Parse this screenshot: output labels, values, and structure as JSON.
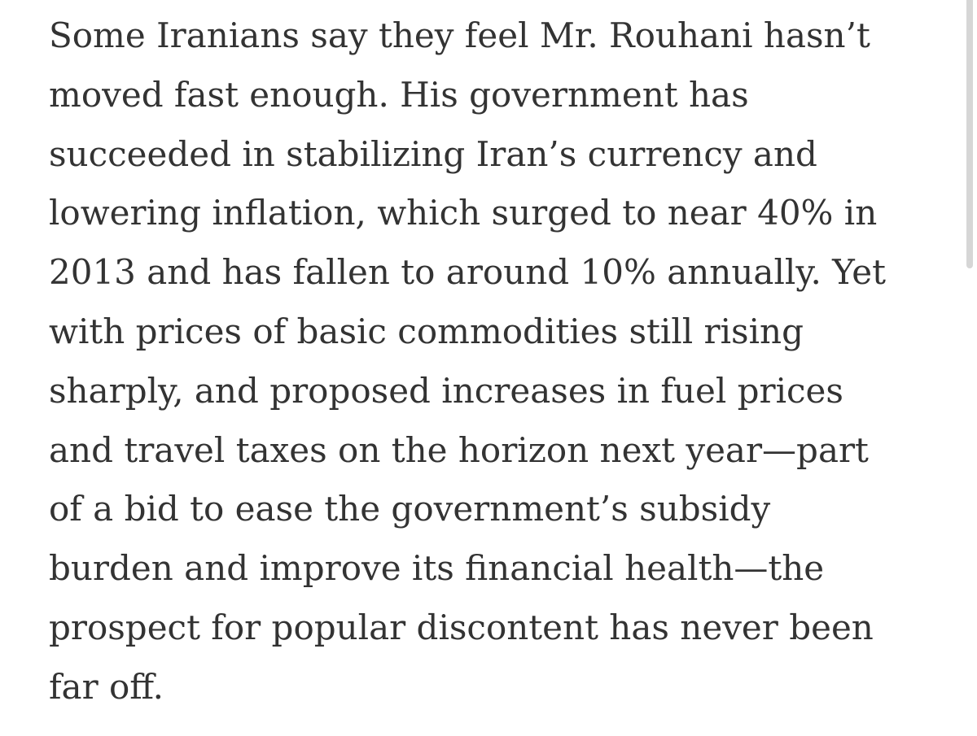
{
  "article": {
    "lines": [
      "Some Iranians say they feel Mr. Rouhani hasn’t",
      "moved fast enough. His government has",
      "succeeded in stabilizing Iran’s currency and",
      "lowering inflation, which surged to near 40% in",
      "2013 and has fallen to around 10% annually. Yet",
      "with prices of basic commodities still rising",
      "sharply, and proposed increases in fuel prices",
      "and travel taxes on the horizon next year—part",
      "of a bid to ease the government’s subsidy",
      "burden and improve its financial health—the",
      "prospect for popular discontent has never been",
      "far off."
    ]
  }
}
